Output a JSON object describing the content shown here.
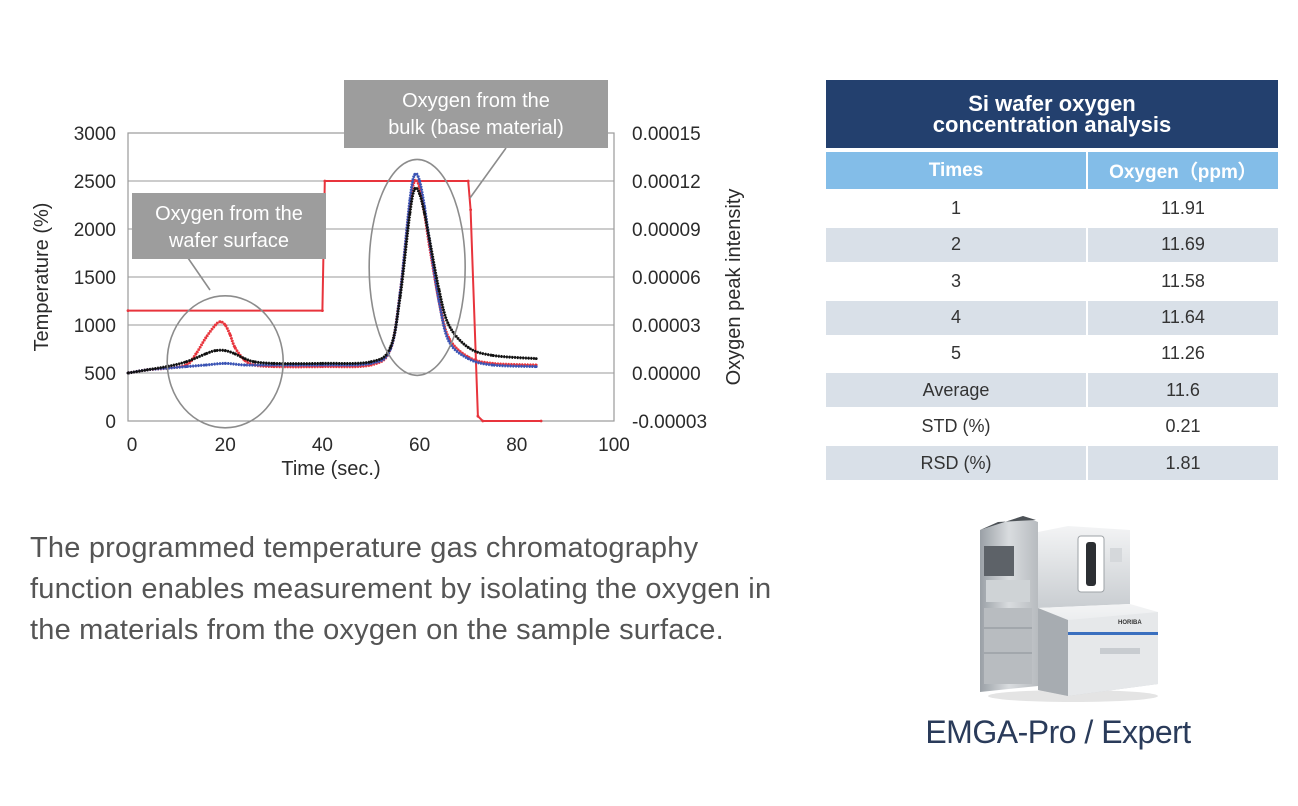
{
  "chart_data": {
    "type": "line",
    "title": "",
    "xlabel": "Time (sec.)",
    "ylabel": "Temperature (%)",
    "y2label": "Oxygen peak intensity",
    "xlim": [
      0,
      100
    ],
    "ylim": [
      0,
      3000
    ],
    "y2lim": [
      -3e-05,
      0.00015
    ],
    "x_ticks": [
      "0",
      "20",
      "40",
      "60",
      "80",
      "100"
    ],
    "y_ticks": [
      "0",
      "500",
      "1000",
      "1500",
      "2000",
      "2500",
      "3000"
    ],
    "y2_ticks": [
      "-0.00003",
      "0.00000",
      "0.00003",
      "0.00006",
      "0.00009",
      "0.00012",
      "0.00015"
    ],
    "grid": true,
    "series": [
      {
        "color": "#e8343c",
        "axis": "left",
        "x": [
          0,
          40,
          40.5,
          70,
          70.5,
          72,
          73,
          85
        ],
        "y": [
          1150,
          1150,
          2500,
          2500,
          2200,
          50,
          0,
          0
        ]
      },
      {
        "color": "#e8343c",
        "axis": "right",
        "x": [
          0,
          4,
          8,
          12,
          14,
          16,
          18,
          19,
          20,
          21,
          22,
          24,
          26,
          30,
          40,
          50,
          54,
          56,
          58,
          59,
          60,
          61,
          62,
          64,
          66,
          70,
          75,
          84
        ],
        "y": [
          0.0,
          2e-06,
          3e-06,
          5e-06,
          1.2e-05,
          2.2e-05,
          3e-05,
          3.2e-05,
          3e-05,
          2.4e-05,
          1.6e-05,
          8e-06,
          5e-06,
          4e-06,
          4e-06,
          5e-06,
          1.5e-05,
          5e-05,
          0.000105,
          0.00012,
          0.000116,
          0.0001,
          8e-05,
          4.5e-05,
          2.2e-05,
          1e-05,
          6e-06,
          5e-06
        ]
      },
      {
        "color": "#3a53b4",
        "axis": "right",
        "x": [
          0,
          4,
          8,
          12,
          16,
          20,
          24,
          30,
          40,
          50,
          54,
          56,
          58,
          59,
          60,
          61,
          62,
          64,
          66,
          70,
          75,
          84
        ],
        "y": [
          0.0,
          2e-06,
          3e-06,
          4e-06,
          5e-06,
          6e-06,
          5e-06,
          5e-06,
          5e-06,
          6e-06,
          1.5e-05,
          5e-05,
          0.000108,
          0.000124,
          0.00012,
          0.000104,
          8.3e-05,
          4.5e-05,
          2e-05,
          9e-06,
          5e-06,
          4e-06
        ]
      },
      {
        "color": "#111111",
        "axis": "right",
        "x": [
          0,
          4,
          8,
          12,
          16,
          18,
          20,
          22,
          24,
          26,
          30,
          40,
          50,
          54,
          56,
          58,
          59,
          60,
          61,
          62,
          64,
          66,
          70,
          75,
          84
        ],
        "y": [
          0.0,
          2e-06,
          4e-06,
          7e-06,
          1.2e-05,
          1.4e-05,
          1.4e-05,
          1.2e-05,
          9e-06,
          7e-06,
          6e-06,
          6e-06,
          7e-06,
          1.6e-05,
          4.8e-05,
          0.0001,
          0.000115,
          0.000112,
          0.0001,
          8.4e-05,
          5.2e-05,
          3e-05,
          1.6e-05,
          1.1e-05,
          9e-06
        ]
      }
    ],
    "annotations": [
      {
        "id": "surface",
        "lines": [
          "Oxygen from the",
          "wafer surface"
        ]
      },
      {
        "id": "bulk",
        "lines": [
          "Oxygen from the",
          "bulk (base material)"
        ]
      }
    ]
  },
  "description": "The programmed temperature gas chromatography function enables measurement by isolating the oxygen in the materials from the oxygen on the sample surface.",
  "table": {
    "title_line1": "Si wafer oxygen",
    "title_line2": "concentration analysis",
    "col1": "Times",
    "col2": "Oxygen（ppm）",
    "rows": [
      {
        "label": "1",
        "value": "11.91"
      },
      {
        "label": "2",
        "value": "11.69"
      },
      {
        "label": "3",
        "value": "11.58"
      },
      {
        "label": "4",
        "value": "11.64"
      },
      {
        "label": "5",
        "value": "11.26"
      },
      {
        "label": "Average",
        "value": "11.6"
      },
      {
        "label": "STD (%)",
        "value": "0.21"
      },
      {
        "label": "RSD (%)",
        "value": "1.81"
      }
    ]
  },
  "product": {
    "name": "EMGA-Pro / Expert",
    "brand_label": "HORIBA"
  }
}
